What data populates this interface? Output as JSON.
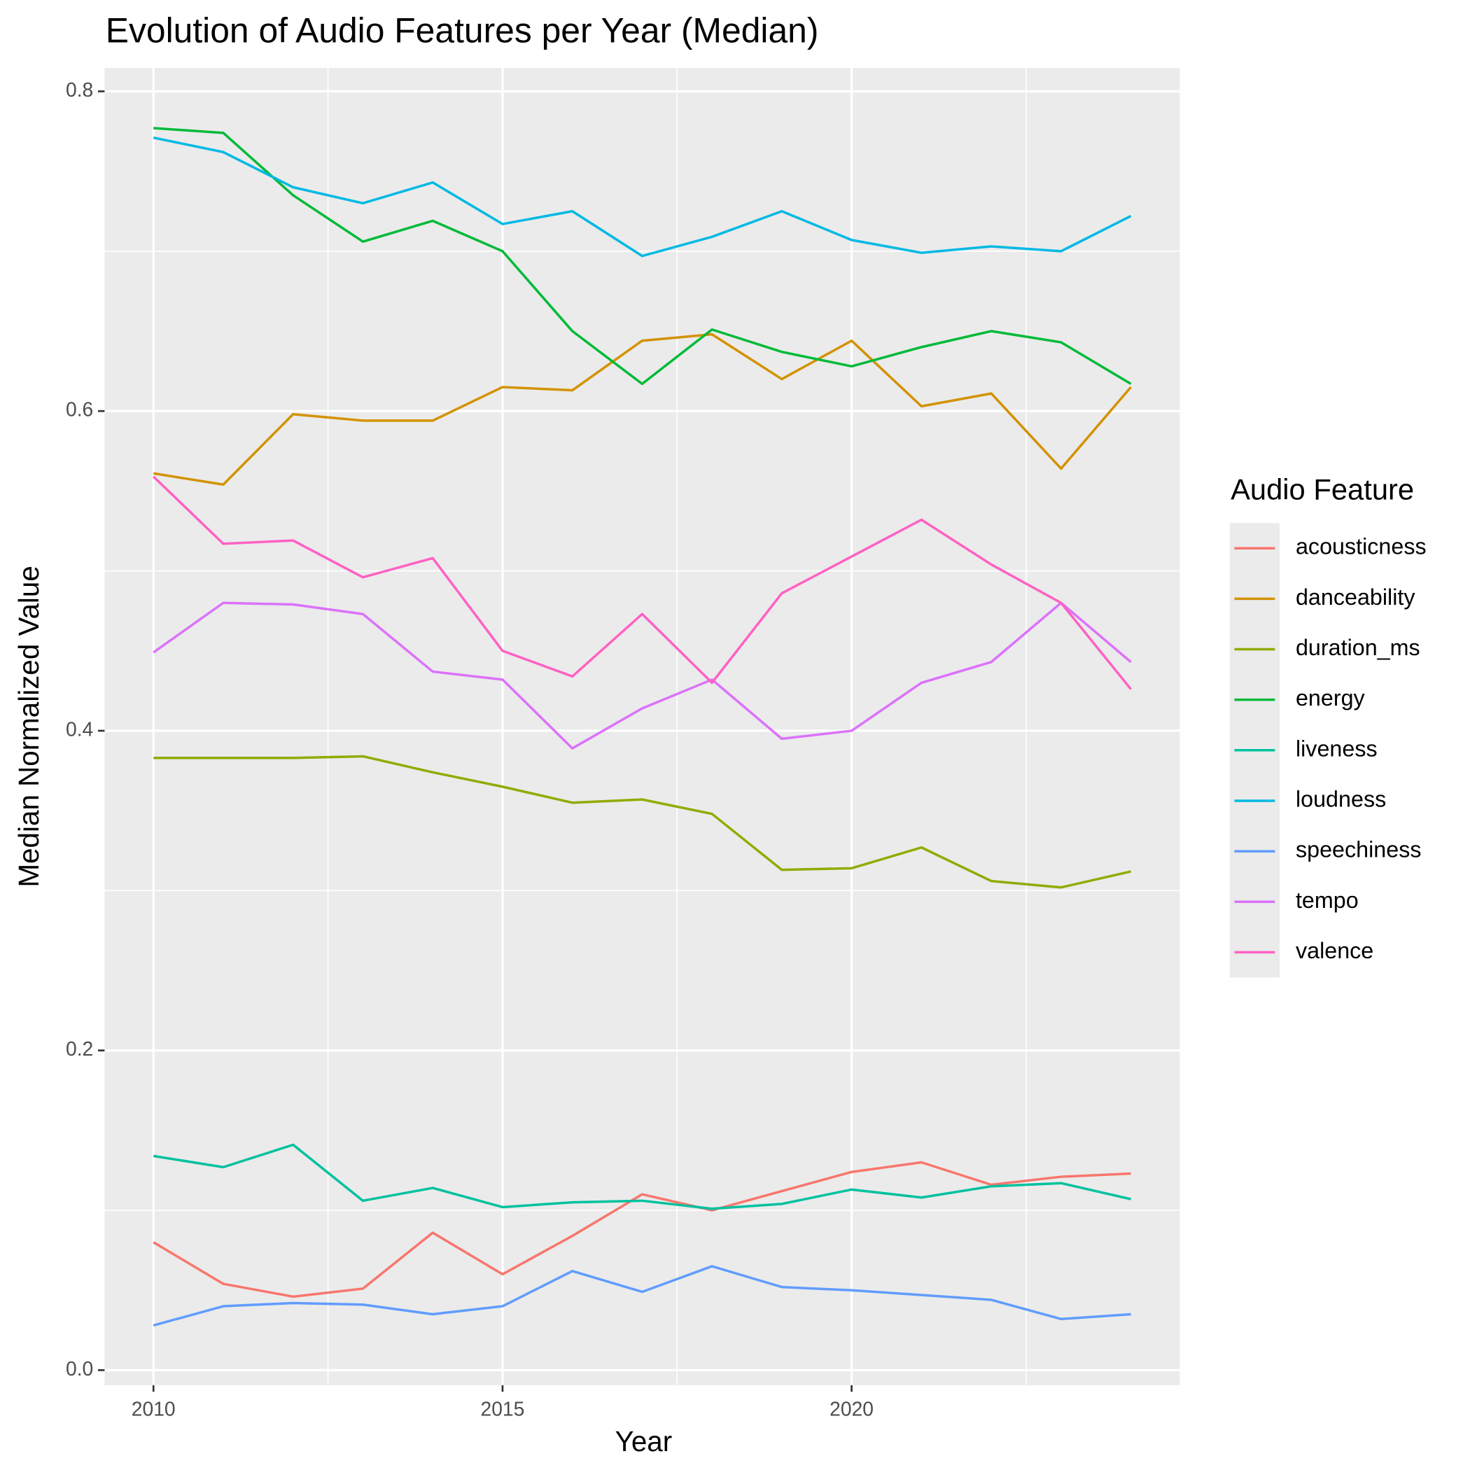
{
  "chart_data": {
    "type": "line",
    "title": "Evolution of Audio Features per Year (Median)",
    "x_label": "Year",
    "y_label": "Median Normalized Value",
    "legend_title": "Audio Feature",
    "legend_position": "right",
    "grid": true,
    "x": [
      2010,
      2011,
      2012,
      2013,
      2014,
      2015,
      2016,
      2017,
      2018,
      2019,
      2020,
      2021,
      2022,
      2023,
      2024
    ],
    "xlim": [
      2009.3,
      2024.7
    ],
    "xticks": [
      2010,
      2015,
      2020
    ],
    "ylim": [
      -0.0094,
      0.8147
    ],
    "yticks": [
      {
        "value": 0,
        "label": "0.0"
      },
      {
        "value": 0.2,
        "label": "0.2"
      },
      {
        "value": 0.4,
        "label": "0.4"
      },
      {
        "value": 0.6,
        "label": "0.6"
      },
      {
        "value": 0.8,
        "label": "0.8"
      }
    ],
    "series": [
      {
        "name": "acousticness",
        "color": "#F8766D",
        "values": [
          0.08,
          0.054,
          0.046,
          0.051,
          0.086,
          0.06,
          0.084,
          0.11,
          0.1,
          0.112,
          0.124,
          0.13,
          0.116,
          0.121,
          0.123
        ]
      },
      {
        "name": "danceability",
        "color": "#D39200",
        "values": [
          0.561,
          0.554,
          0.598,
          0.594,
          0.594,
          0.615,
          0.613,
          0.644,
          0.648,
          0.62,
          0.644,
          0.603,
          0.611,
          0.564,
          0.615
        ]
      },
      {
        "name": "duration_ms",
        "color": "#93AA00",
        "values": [
          0.383,
          0.383,
          0.383,
          0.384,
          0.374,
          0.365,
          0.355,
          0.357,
          0.348,
          0.313,
          0.314,
          0.327,
          0.306,
          0.302,
          0.312
        ]
      },
      {
        "name": "energy",
        "color": "#00BA38",
        "values": [
          0.777,
          0.774,
          0.735,
          0.706,
          0.719,
          0.7,
          0.65,
          0.617,
          0.651,
          0.637,
          0.628,
          0.64,
          0.65,
          0.643,
          0.617
        ]
      },
      {
        "name": "liveness",
        "color": "#00C19F",
        "values": [
          0.134,
          0.127,
          0.141,
          0.106,
          0.114,
          0.102,
          0.105,
          0.106,
          0.101,
          0.104,
          0.113,
          0.108,
          0.115,
          0.117,
          0.107
        ]
      },
      {
        "name": "loudness",
        "color": "#00B9E3",
        "values": [
          0.771,
          0.762,
          0.74,
          0.73,
          0.743,
          0.717,
          0.725,
          0.697,
          0.709,
          0.725,
          0.707,
          0.699,
          0.703,
          0.7,
          0.722
        ]
      },
      {
        "name": "speechiness",
        "color": "#619CFF",
        "values": [
          0.028,
          0.04,
          0.042,
          0.041,
          0.035,
          0.04,
          0.062,
          0.049,
          0.065,
          0.052,
          0.05,
          0.047,
          0.044,
          0.032,
          0.035
        ]
      },
      {
        "name": "tempo",
        "color": "#DB72FB",
        "values": [
          0.449,
          0.48,
          0.479,
          0.473,
          0.437,
          0.432,
          0.389,
          0.414,
          0.432,
          0.395,
          0.4,
          0.43,
          0.443,
          0.48,
          0.443
        ]
      },
      {
        "name": "valence",
        "color": "#FF61C3",
        "values": [
          0.559,
          0.517,
          0.519,
          0.496,
          0.508,
          0.45,
          0.434,
          0.473,
          0.43,
          0.486,
          0.509,
          0.532,
          0.504,
          0.48,
          0.426
        ]
      }
    ]
  }
}
